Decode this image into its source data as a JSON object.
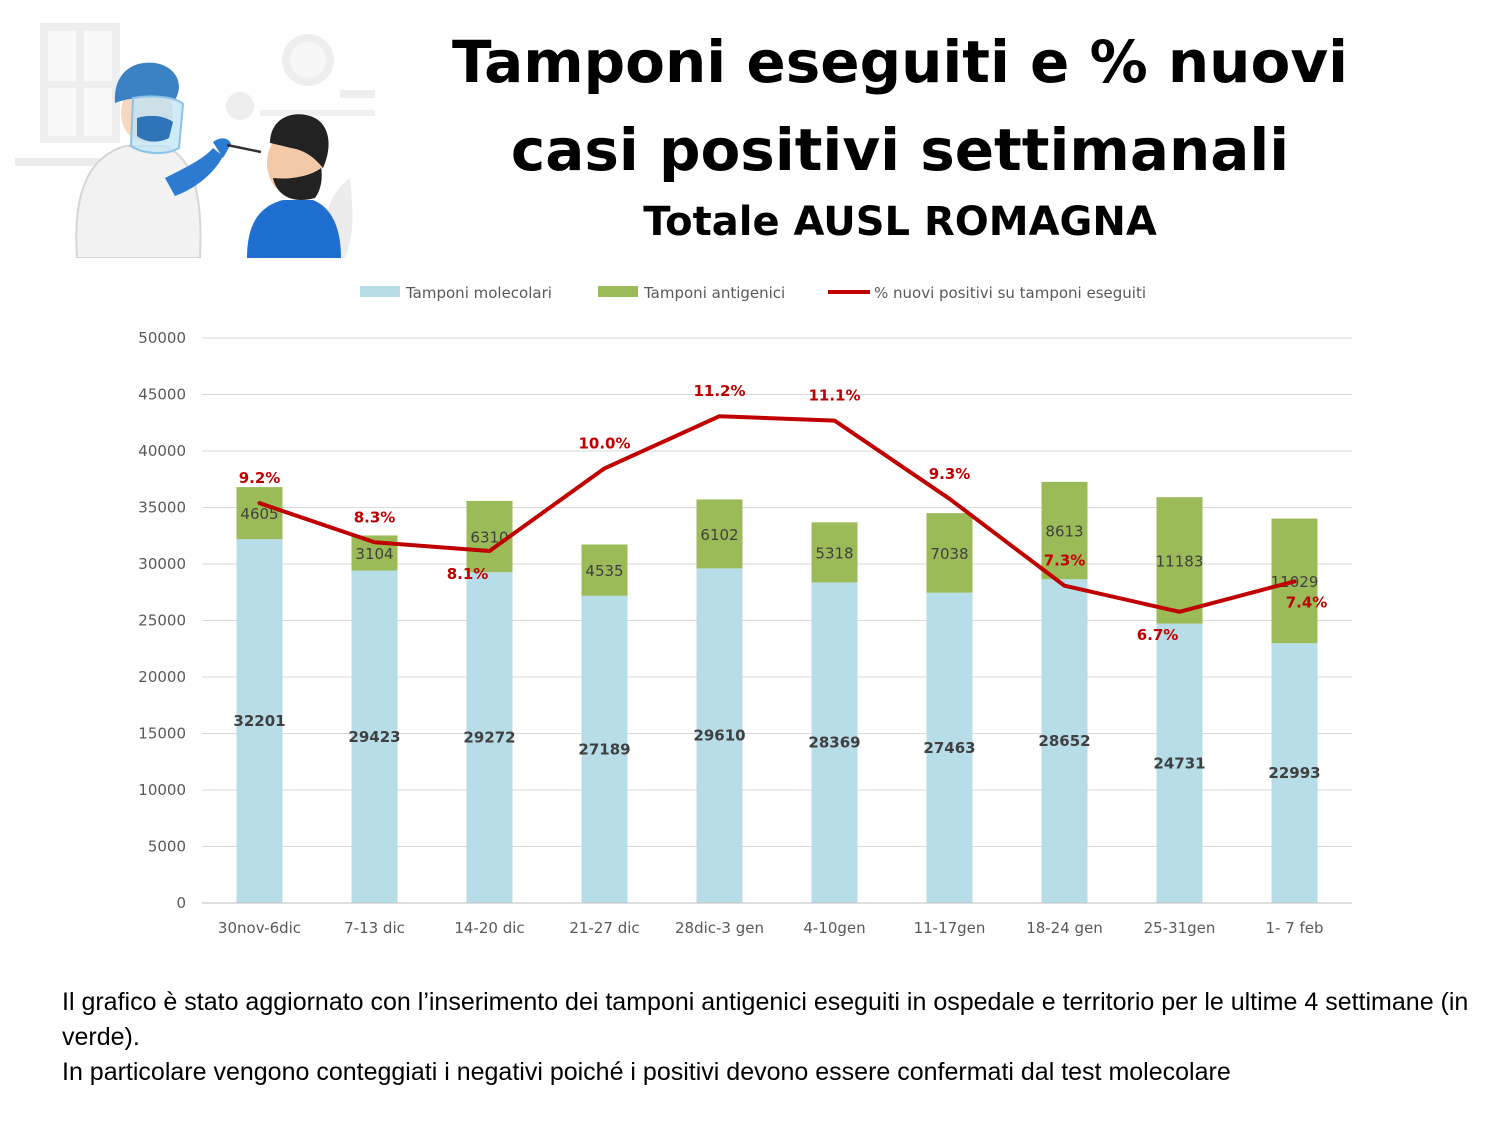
{
  "header": {
    "title": "Tamponi eseguiti e % nuovi casi positivi settimanali",
    "subtitle": "Totale AUSL ROMAGNA"
  },
  "illustration": {
    "icon": "nasal-swab-test-illustration"
  },
  "chart_data": {
    "type": "bar",
    "stacked": true,
    "categories": [
      "30nov-6dic",
      "7-13 dic",
      "14-20 dic",
      "21-27 dic",
      "28dic-3 gen",
      "4-10gen",
      "11-17gen",
      "18-24 gen",
      "25-31gen",
      "1- 7 feb"
    ],
    "series": [
      {
        "name": "Tamponi molecolari",
        "color": "#b7dde8",
        "values": [
          32201,
          29423,
          29272,
          27189,
          29610,
          28369,
          27463,
          28652,
          24731,
          22993
        ]
      },
      {
        "name": "Tamponi antigenici",
        "color": "#9bbb59",
        "values": [
          4605,
          3104,
          6310,
          4535,
          6102,
          5318,
          7038,
          8613,
          11183,
          11029
        ]
      }
    ],
    "line_series": {
      "name": "% nuovi positivi su tamponi eseguiti",
      "color": "#c00000",
      "values": [
        9.2,
        8.3,
        8.1,
        10.0,
        11.2,
        11.1,
        9.3,
        7.3,
        6.7,
        7.4
      ],
      "labels": [
        "9.2%",
        "8.3%",
        "8.1%",
        "10.0%",
        "11.2%",
        "11.1%",
        "9.3%",
        "7.3%",
        "6.7%",
        "7.4%"
      ],
      "secondary_axis_range": [
        0,
        13
      ],
      "secondary_axis_visible": false
    },
    "ylim": [
      0,
      50000
    ],
    "yticks": [
      0,
      5000,
      10000,
      15000,
      20000,
      25000,
      30000,
      35000,
      40000,
      45000,
      50000
    ],
    "grid": true,
    "legend": "top",
    "xlabel": "",
    "ylabel": ""
  },
  "caption": {
    "line1": "Il grafico è stato aggiornato con l’inserimento dei tamponi antigenici eseguiti in ospedale e territorio per le ultime 4 settimane (in verde).",
    "line2": "In particolare vengono conteggiati i negativi poiché i positivi devono essere confermati dal test molecolare"
  }
}
